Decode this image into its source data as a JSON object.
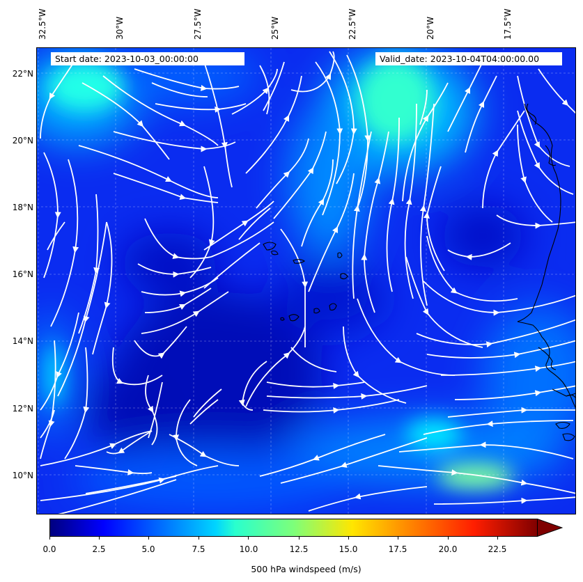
{
  "start_date": "Start date: 2023-10-03_00:00:00",
  "valid_date": "Valid_date: 2023-10-04T04:00:00.00",
  "lon_labels": [
    "32.5°W",
    "30°W",
    "27.5°W",
    "25°W",
    "22.5°W",
    "20°W",
    "17.5°W"
  ],
  "lat_labels": [
    "22°N",
    "20°N",
    "18°N",
    "16°N",
    "14°N",
    "12°N",
    "10°N"
  ],
  "colorbar": {
    "label": "500 hPa windspeed (m/s)",
    "ticks": [
      "0.0",
      "2.5",
      "5.0",
      "7.5",
      "10.0",
      "12.5",
      "15.0",
      "17.5",
      "20.0",
      "22.5"
    ],
    "min": 0,
    "max": 25,
    "colormap": "jet",
    "extend": "max"
  },
  "field": {
    "dominant_color": "#0022ee",
    "calm_color": "#0000b0",
    "fast_color": "#20ffe0"
  }
}
